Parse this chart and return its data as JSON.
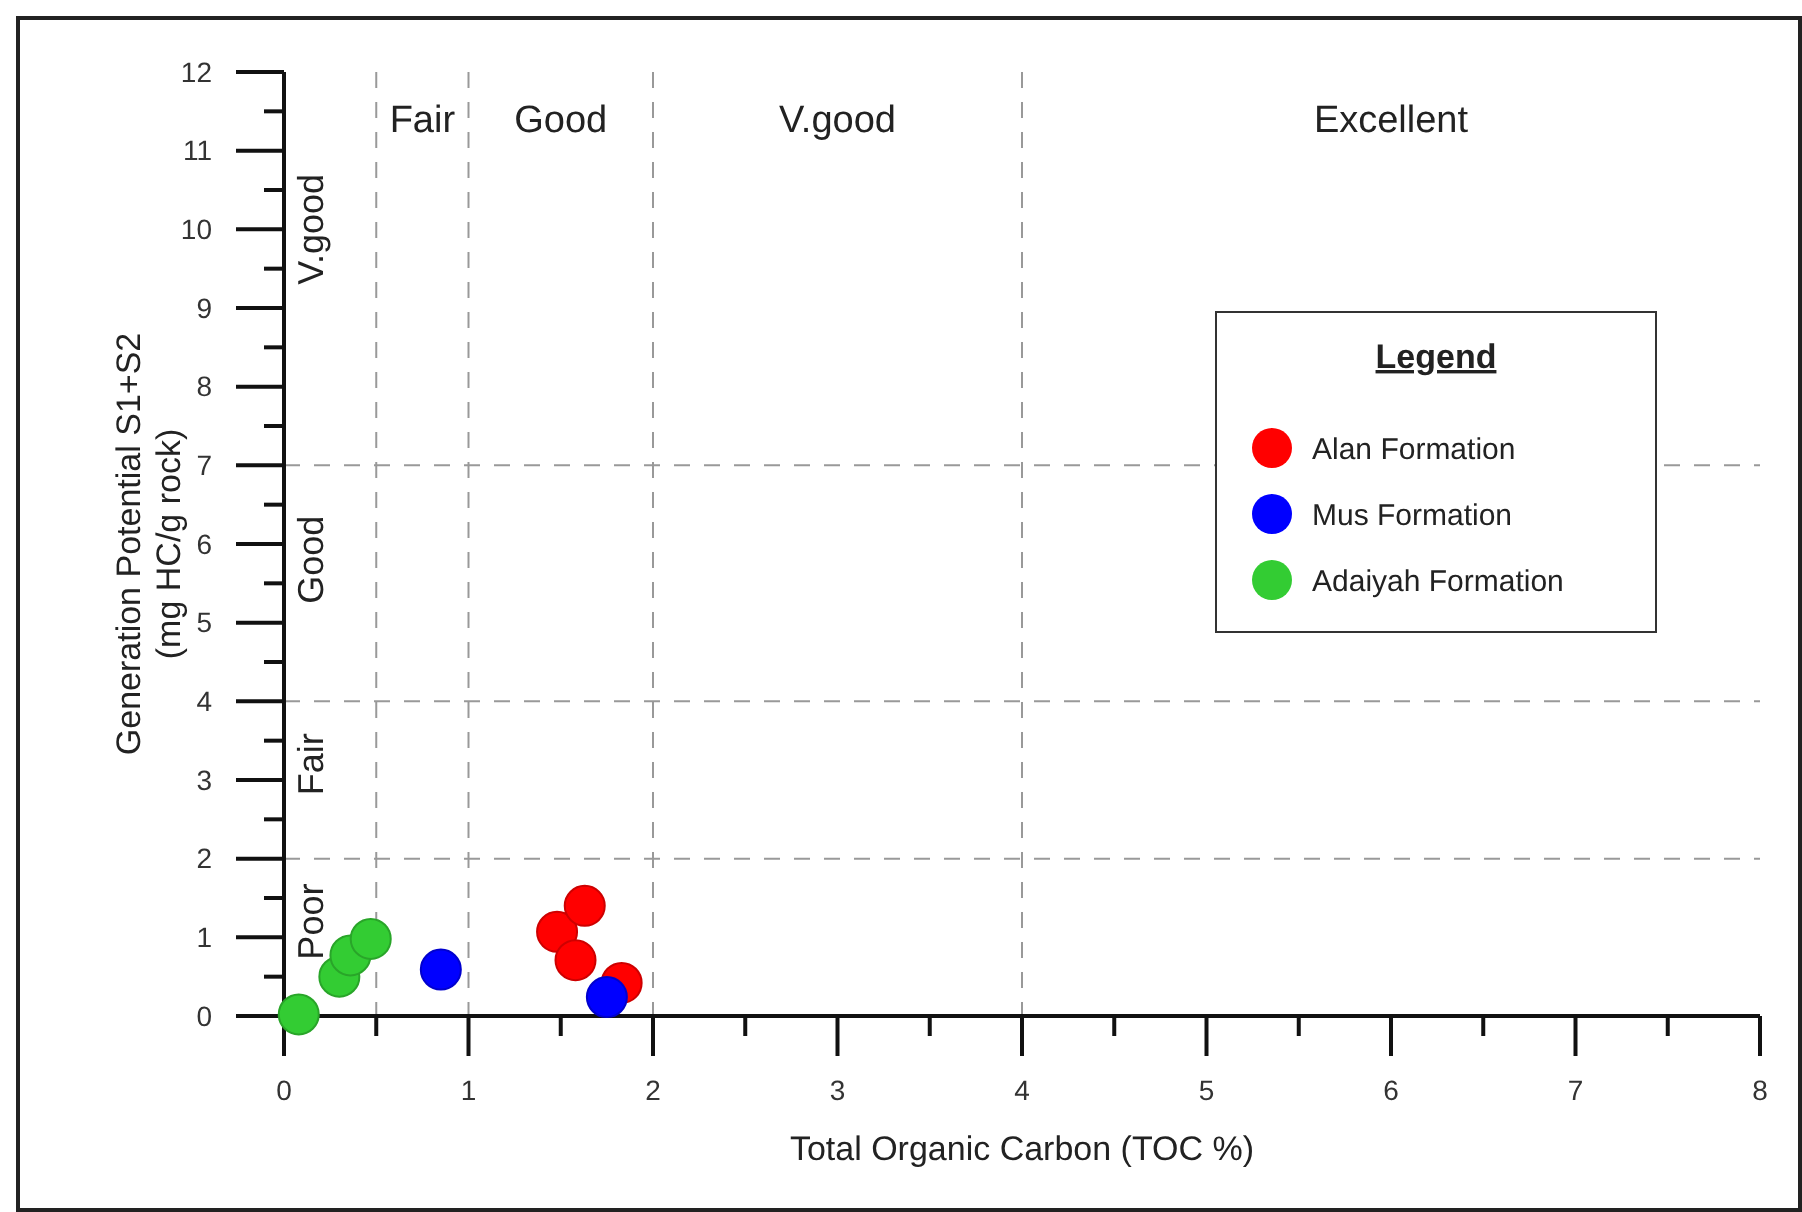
{
  "chart_data": {
    "type": "scatter",
    "xlabel": "Total Organic Carbon (TOC %)",
    "ylabel": "Generation Potential S1+S2\n(mg HC/g rock)",
    "legend_title": "Legend",
    "legend": "right",
    "marker": "circle",
    "grid": false,
    "xlim": [
      0,
      8
    ],
    "ylim": [
      0,
      12
    ],
    "xticks": [
      0,
      {
        "value": 0.5,
        "label": null
      },
      1,
      {
        "value": 1.5,
        "label": null
      },
      2,
      {
        "value": 2.5,
        "label": null
      },
      3,
      {
        "value": 3.5,
        "label": null
      },
      4,
      {
        "value": 4.5,
        "label": null
      },
      5,
      {
        "value": 5.5,
        "label": null
      },
      6,
      {
        "value": 6.5,
        "label": null
      },
      7,
      {
        "value": 7.5,
        "label": null
      },
      8
    ],
    "yticks": [
      0,
      {
        "value": 0.5,
        "label": null
      },
      1,
      {
        "value": 1.5,
        "label": null
      },
      2,
      {
        "value": 2.5,
        "label": null
      },
      3,
      {
        "value": 3.5,
        "label": null
      },
      4,
      {
        "value": 4.5,
        "label": null
      },
      5,
      {
        "value": 5.5,
        "label": null
      },
      6,
      {
        "value": 6.5,
        "label": null
      },
      7,
      {
        "value": 7.5,
        "label": null
      },
      8,
      {
        "value": 8.5,
        "label": null
      },
      9,
      {
        "value": 9.5,
        "label": null
      },
      10,
      {
        "value": 10.5,
        "label": null
      },
      11,
      {
        "value": 11.5,
        "label": null
      },
      12
    ],
    "series": [
      {
        "name": "Alan Formation",
        "color": "#ff0000",
        "x": [
          1.48,
          1.63,
          1.58,
          1.83
        ],
        "values": [
          1.07,
          1.4,
          0.71,
          0.42
        ]
      },
      {
        "name": "Mus Formation",
        "color": "#0000ff",
        "x": [
          0.85,
          1.75
        ],
        "values": [
          0.59,
          0.24
        ]
      },
      {
        "name": "Adaiyah  Formation",
        "color": "#33cc33",
        "x": [
          0.08,
          0.3,
          0.36,
          0.47
        ],
        "values": [
          0.02,
          0.5,
          0.77,
          0.98
        ]
      }
    ],
    "ref_lines": [
      {
        "axis": "x",
        "value": 0.5,
        "line_style": "dashed",
        "color": "#999999"
      },
      {
        "axis": "x",
        "value": 1,
        "line_style": "dashed",
        "color": "#999999"
      },
      {
        "axis": "x",
        "value": 2,
        "line_style": "dashed",
        "color": "#999999"
      },
      {
        "axis": "x",
        "value": 4,
        "line_style": "dashed",
        "color": "#999999"
      },
      {
        "axis": "y",
        "value": 2,
        "line_style": "dashed",
        "color": "#999999"
      },
      {
        "axis": "y",
        "value": 4,
        "line_style": "dashed",
        "color": "#999999"
      },
      {
        "axis": "y",
        "value": 7,
        "line_style": "dashed",
        "color": "#999999"
      }
    ],
    "annotations": [
      "Fair",
      "Good",
      "V.good",
      "Excellent",
      "Poor",
      "Fair",
      "Good",
      "V.good"
    ]
  }
}
